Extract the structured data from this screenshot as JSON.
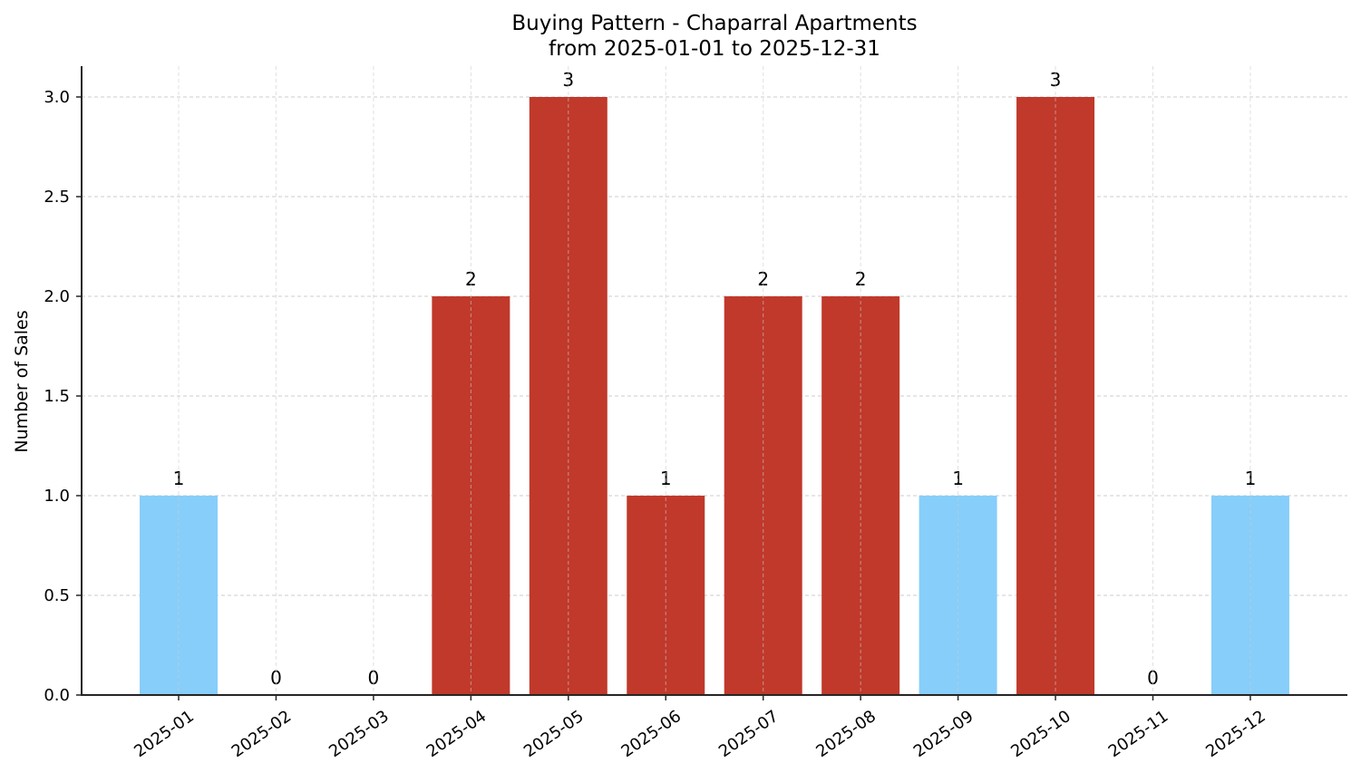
{
  "chart_data": {
    "type": "bar",
    "title": "Buying Pattern - Chaparral Apartments",
    "subtitle": "from 2025-01-01 to 2025-12-31",
    "xlabel": "",
    "ylabel": "Number of Sales",
    "categories": [
      "2025-01",
      "2025-02",
      "2025-03",
      "2025-04",
      "2025-05",
      "2025-06",
      "2025-07",
      "2025-08",
      "2025-09",
      "2025-10",
      "2025-11",
      "2025-12"
    ],
    "values": [
      1,
      0,
      0,
      2,
      3,
      1,
      2,
      2,
      1,
      3,
      0,
      1
    ],
    "bar_labels": [
      "1",
      "0",
      "0",
      "2",
      "3",
      "1",
      "2",
      "2",
      "1",
      "3",
      "0",
      "1"
    ],
    "bar_colors": [
      "#87CEFA",
      "#87CEFA",
      "#87CEFA",
      "#C0392B",
      "#C0392B",
      "#C0392B",
      "#C0392B",
      "#C0392B",
      "#87CEFA",
      "#C0392B",
      "#87CEFA",
      "#87CEFA"
    ],
    "color_legend": {
      "low": "#87CEFA",
      "high": "#C0392B"
    },
    "yticks": [
      "0.0",
      "0.5",
      "1.0",
      "1.5",
      "2.0",
      "2.5",
      "3.0"
    ],
    "ylim": [
      0,
      3.15
    ],
    "grid": true,
    "legend": null,
    "x_tick_rotation": 35
  }
}
